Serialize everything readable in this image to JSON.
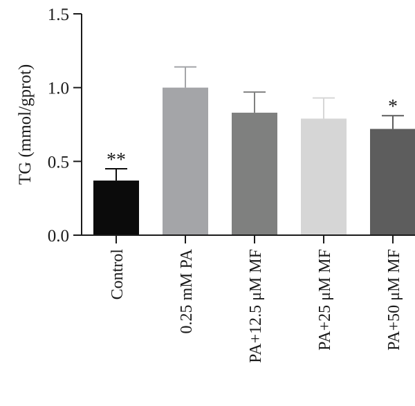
{
  "chart_data": {
    "type": "bar",
    "title": "",
    "xlabel": "",
    "ylabel": "TG (mmol/gprot)",
    "ylim": [
      0,
      1.5
    ],
    "yticks": [
      "0.0",
      "0.5",
      "1.0",
      "1.5"
    ],
    "categories": [
      "Control",
      "0.25 mM PA",
      "PA+12.5 μM MF",
      "PA+25 μM MF",
      "PA+50 μM MF"
    ],
    "values": [
      0.37,
      1.0,
      0.83,
      0.79,
      0.72
    ],
    "errors": [
      0.08,
      0.14,
      0.14,
      0.14,
      0.09
    ],
    "annotations": [
      "**",
      "",
      "",
      "",
      "*"
    ],
    "colors": [
      "#0b0b0b",
      "#a4a5a8",
      "#7f807f",
      "#d6d6d6",
      "#5d5d5d"
    ],
    "grid": false,
    "legend": "none"
  }
}
